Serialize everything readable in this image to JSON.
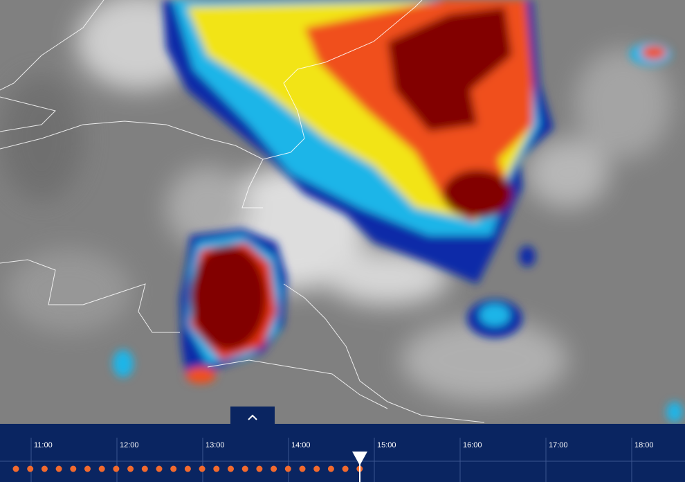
{
  "timeline": {
    "times": [
      "11:00",
      "12:00",
      "13:00",
      "14:00",
      "15:00",
      "16:00",
      "17:00",
      "18:00"
    ]
  }
}
